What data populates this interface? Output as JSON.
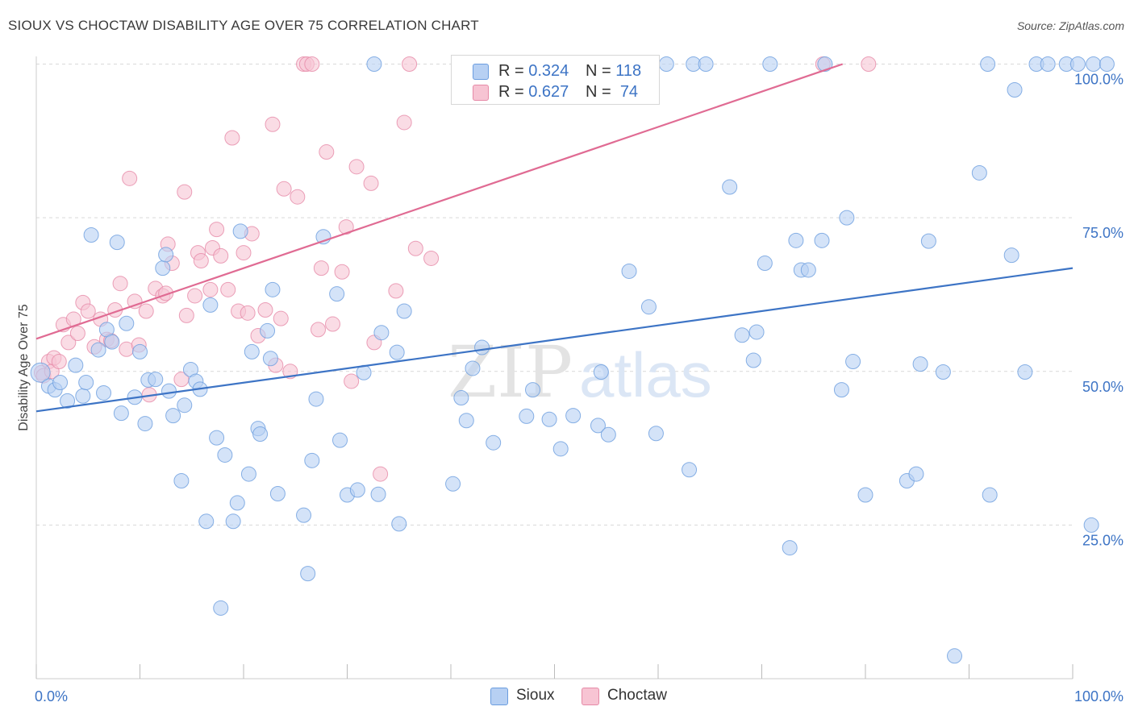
{
  "header": {
    "title": "SIOUX VS CHOCTAW DISABILITY AGE OVER 75 CORRELATION CHART",
    "source": "Source: ZipAtlas.com"
  },
  "stats_legend": {
    "rows": [
      {
        "r_label": "R =",
        "r_value": "0.324",
        "n_label": "N =",
        "n_value": "118"
      },
      {
        "r_label": "R =",
        "r_value": "0.627",
        "n_label": "N =",
        "n_value": "74"
      }
    ]
  },
  "watermark": {
    "text1": "ZIP",
    "text2": "atlas"
  },
  "colors": {
    "sioux_fill": "#b7d0f3",
    "sioux_stroke": "#6b9ddf",
    "sioux_line": "#3d74c5",
    "choctaw_fill": "#f7c4d3",
    "choctaw_stroke": "#e68aa7",
    "choctaw_line": "#e06b93",
    "tick_text": "#3d74c5",
    "grid": "#d9d9d9"
  },
  "chart_data": {
    "type": "scatter",
    "title": "SIOUX VS CHOCTAW DISABILITY AGE OVER 75 CORRELATION CHART",
    "xlabel": "",
    "ylabel": "Disability Age Over 75",
    "xlim": [
      0,
      100
    ],
    "ylim": [
      0,
      102
    ],
    "x_tick_labels": [
      "0.0%",
      "100.0%"
    ],
    "y_ticks": [
      {
        "value": 25,
        "label": "25.0%"
      },
      {
        "value": 50,
        "label": "50.0%"
      },
      {
        "value": 75,
        "label": "75.0%"
      },
      {
        "value": 100,
        "label": "100.0%"
      }
    ],
    "grid": "horizontal dashed",
    "legend": "bottom-center",
    "series": [
      {
        "name": "Sioux",
        "trend": {
          "x": [
            0,
            100
          ],
          "y": [
            43.5,
            66.8
          ]
        },
        "points": [
          [
            0.4,
            49.8
          ],
          [
            1.2,
            47.6
          ],
          [
            1.8,
            47.0
          ],
          [
            2.3,
            48.2
          ],
          [
            3.0,
            45.2
          ],
          [
            3.8,
            51.0
          ],
          [
            4.5,
            46.0
          ],
          [
            4.8,
            48.2
          ],
          [
            5.3,
            72.2
          ],
          [
            6.0,
            53.5
          ],
          [
            6.5,
            46.5
          ],
          [
            6.8,
            56.8
          ],
          [
            7.3,
            54.8
          ],
          [
            7.8,
            71.0
          ],
          [
            8.2,
            43.2
          ],
          [
            8.7,
            57.8
          ],
          [
            9.5,
            45.8
          ],
          [
            10.0,
            53.2
          ],
          [
            10.5,
            41.5
          ],
          [
            10.8,
            48.6
          ],
          [
            11.5,
            48.7
          ],
          [
            12.2,
            66.8
          ],
          [
            12.5,
            69.0
          ],
          [
            12.8,
            46.8
          ],
          [
            13.2,
            42.8
          ],
          [
            14.0,
            32.2
          ],
          [
            14.3,
            44.5
          ],
          [
            14.9,
            50.3
          ],
          [
            15.4,
            48.4
          ],
          [
            15.8,
            47.1
          ],
          [
            16.4,
            25.6
          ],
          [
            16.8,
            60.8
          ],
          [
            17.4,
            39.2
          ],
          [
            17.8,
            11.5
          ],
          [
            18.2,
            36.4
          ],
          [
            19.0,
            25.6
          ],
          [
            19.4,
            28.6
          ],
          [
            19.7,
            72.8
          ],
          [
            20.5,
            33.3
          ],
          [
            20.8,
            53.2
          ],
          [
            21.4,
            40.7
          ],
          [
            21.6,
            39.8
          ],
          [
            22.3,
            56.6
          ],
          [
            22.8,
            63.3
          ],
          [
            22.6,
            52.1
          ],
          [
            23.3,
            30.1
          ],
          [
            25.8,
            26.6
          ],
          [
            26.2,
            17.1
          ],
          [
            26.6,
            35.5
          ],
          [
            27.0,
            45.5
          ],
          [
            27.7,
            71.9
          ],
          [
            29.0,
            62.6
          ],
          [
            29.3,
            38.8
          ],
          [
            30.0,
            29.9
          ],
          [
            31.0,
            30.7
          ],
          [
            31.6,
            49.8
          ],
          [
            32.6,
            100
          ],
          [
            33.0,
            30.0
          ],
          [
            33.3,
            56.3
          ],
          [
            34.8,
            53.1
          ],
          [
            35.0,
            25.2
          ],
          [
            35.5,
            59.8
          ],
          [
            40.2,
            31.7
          ],
          [
            41.0,
            45.7
          ],
          [
            41.5,
            42.0
          ],
          [
            42.1,
            50.5
          ],
          [
            43.0,
            53.9
          ],
          [
            44.1,
            38.4
          ],
          [
            47.3,
            42.7
          ],
          [
            47.9,
            47.0
          ],
          [
            49.5,
            42.2
          ],
          [
            50.6,
            37.4
          ],
          [
            51.8,
            42.8
          ],
          [
            54.2,
            41.2
          ],
          [
            54.5,
            49.9
          ],
          [
            55.2,
            39.7
          ],
          [
            57.2,
            66.3
          ],
          [
            59.1,
            60.5
          ],
          [
            59.8,
            39.9
          ],
          [
            60.8,
            100
          ],
          [
            63.0,
            34.0
          ],
          [
            63.4,
            100
          ],
          [
            64.6,
            100
          ],
          [
            66.9,
            80.0
          ],
          [
            68.1,
            55.9
          ],
          [
            69.2,
            51.8
          ],
          [
            69.5,
            56.4
          ],
          [
            70.3,
            67.6
          ],
          [
            70.8,
            100
          ],
          [
            72.7,
            21.3
          ],
          [
            73.3,
            71.3
          ],
          [
            73.8,
            66.5
          ],
          [
            74.5,
            66.5
          ],
          [
            75.8,
            71.3
          ],
          [
            76.1,
            100
          ],
          [
            77.7,
            47.0
          ],
          [
            78.2,
            75.0
          ],
          [
            78.8,
            51.6
          ],
          [
            80.0,
            29.9
          ],
          [
            84.0,
            32.2
          ],
          [
            84.9,
            33.3
          ],
          [
            85.3,
            51.2
          ],
          [
            86.1,
            71.2
          ],
          [
            87.5,
            49.9
          ],
          [
            88.6,
            3.7
          ],
          [
            91.0,
            82.3
          ],
          [
            91.8,
            100
          ],
          [
            92.0,
            29.9
          ],
          [
            94.1,
            68.9
          ],
          [
            94.4,
            95.8
          ],
          [
            95.4,
            49.9
          ],
          [
            96.5,
            100
          ],
          [
            97.6,
            100
          ],
          [
            99.4,
            100
          ],
          [
            100.5,
            100
          ],
          [
            101.8,
            25.0
          ],
          [
            102.0,
            100
          ],
          [
            103.3,
            100
          ]
        ]
      },
      {
        "name": "Choctaw",
        "trend": {
          "x": [
            0,
            77.8
          ],
          "y": [
            55.3,
            100
          ]
        },
        "points": [
          [
            0.5,
            49.8
          ],
          [
            0.7,
            49.3
          ],
          [
            1.2,
            51.6
          ],
          [
            1.5,
            50.0
          ],
          [
            1.7,
            52.2
          ],
          [
            2.2,
            51.6
          ],
          [
            2.6,
            57.6
          ],
          [
            3.1,
            54.7
          ],
          [
            3.6,
            58.5
          ],
          [
            4.0,
            56.2
          ],
          [
            4.5,
            61.2
          ],
          [
            5.0,
            59.8
          ],
          [
            5.6,
            54.0
          ],
          [
            6.2,
            58.5
          ],
          [
            6.8,
            55.2
          ],
          [
            7.2,
            55.0
          ],
          [
            7.6,
            60.0
          ],
          [
            8.1,
            64.3
          ],
          [
            8.7,
            53.6
          ],
          [
            9.0,
            81.4
          ],
          [
            9.5,
            61.4
          ],
          [
            9.9,
            54.3
          ],
          [
            10.6,
            59.8
          ],
          [
            10.9,
            46.2
          ],
          [
            11.5,
            63.5
          ],
          [
            12.2,
            62.3
          ],
          [
            12.5,
            62.7
          ],
          [
            12.7,
            70.7
          ],
          [
            13.1,
            67.6
          ],
          [
            14.0,
            48.7
          ],
          [
            14.3,
            79.2
          ],
          [
            14.5,
            59.1
          ],
          [
            15.3,
            62.3
          ],
          [
            15.6,
            69.3
          ],
          [
            15.9,
            68.0
          ],
          [
            16.8,
            63.3
          ],
          [
            17.0,
            70.1
          ],
          [
            17.4,
            73.1
          ],
          [
            17.8,
            68.8
          ],
          [
            18.5,
            63.3
          ],
          [
            18.9,
            88.0
          ],
          [
            19.5,
            59.8
          ],
          [
            20.0,
            69.3
          ],
          [
            20.4,
            59.5
          ],
          [
            20.8,
            72.4
          ],
          [
            21.4,
            55.8
          ],
          [
            22.1,
            60.0
          ],
          [
            22.8,
            90.2
          ],
          [
            23.1,
            51.0
          ],
          [
            23.6,
            58.6
          ],
          [
            23.9,
            79.7
          ],
          [
            24.5,
            50.0
          ],
          [
            25.2,
            78.4
          ],
          [
            25.8,
            100
          ],
          [
            26.1,
            100
          ],
          [
            26.6,
            100
          ],
          [
            27.2,
            56.8
          ],
          [
            27.5,
            66.8
          ],
          [
            28.0,
            85.7
          ],
          [
            28.6,
            57.7
          ],
          [
            29.5,
            66.2
          ],
          [
            29.9,
            73.5
          ],
          [
            30.4,
            48.4
          ],
          [
            30.9,
            83.3
          ],
          [
            32.3,
            80.6
          ],
          [
            32.6,
            54.7
          ],
          [
            33.2,
            33.3
          ],
          [
            34.7,
            63.1
          ],
          [
            35.5,
            90.5
          ],
          [
            36.0,
            100
          ],
          [
            36.6,
            70.0
          ],
          [
            38.1,
            68.4
          ],
          [
            75.9,
            100
          ],
          [
            80.3,
            100
          ]
        ]
      }
    ]
  }
}
